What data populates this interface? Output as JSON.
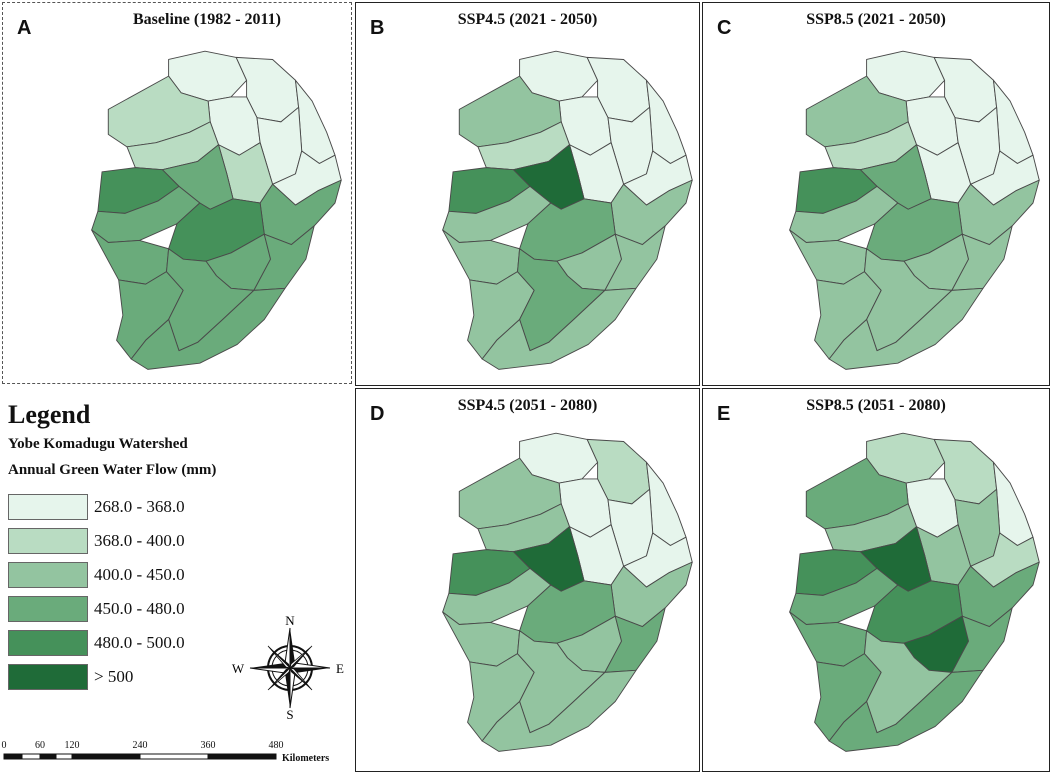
{
  "panels": [
    {
      "letter": "A",
      "title": "Baseline (1982 - 2011)"
    },
    {
      "letter": "B",
      "title": "SSP4.5 (2021 - 2050)"
    },
    {
      "letter": "C",
      "title": "SSP8.5 (2021 - 2050)"
    },
    {
      "letter": "D",
      "title": "SSP4.5 (2051 - 2080)"
    },
    {
      "letter": "E",
      "title": "SSP8.5 (2051 - 2080)"
    }
  ],
  "legend": {
    "title": "Legend",
    "subtitle1": "Yobe Komadugu Watershed",
    "subtitle2": "Annual Green Water Flow (mm)",
    "classes": [
      {
        "label": "268.0 - 368.0",
        "color": "#e6f5ec"
      },
      {
        "label": "368.0 - 400.0",
        "color": "#b9dcc2"
      },
      {
        "label": "400.0 - 450.0",
        "color": "#93c4a0"
      },
      {
        "label": "450.0 - 480.0",
        "color": "#6aab7b"
      },
      {
        "label": "480.0 - 500.0",
        "color": "#45915a"
      },
      {
        "label": "> 500",
        "color": "#1f6b38"
      }
    ]
  },
  "compass": {
    "n": "N",
    "s": "S",
    "e": "E",
    "w": "W"
  },
  "scalebar": {
    "ticks": [
      "0",
      "60",
      "120",
      "240",
      "360",
      "480"
    ],
    "unit": "Kilometers"
  },
  "subbasin_classes": {
    "A": [
      0,
      0,
      0,
      0,
      0,
      0,
      1,
      1,
      1,
      3,
      4,
      3,
      3,
      4,
      3,
      3,
      3,
      3,
      3,
      3
    ],
    "B": [
      0,
      0,
      0,
      0,
      0,
      0,
      2,
      0,
      1,
      5,
      4,
      2,
      2,
      3,
      2,
      2,
      2,
      2,
      3,
      2
    ],
    "C": [
      0,
      0,
      0,
      0,
      0,
      0,
      2,
      0,
      1,
      3,
      4,
      2,
      2,
      3,
      2,
      2,
      2,
      2,
      2,
      2
    ],
    "D": [
      0,
      1,
      0,
      0,
      0,
      0,
      2,
      0,
      2,
      5,
      4,
      2,
      2,
      3,
      2,
      2,
      3,
      2,
      2,
      2
    ],
    "E": [
      1,
      1,
      0,
      0,
      2,
      1,
      3,
      2,
      2,
      5,
      4,
      3,
      3,
      4,
      3,
      5,
      3,
      3,
      2,
      3
    ]
  }
}
